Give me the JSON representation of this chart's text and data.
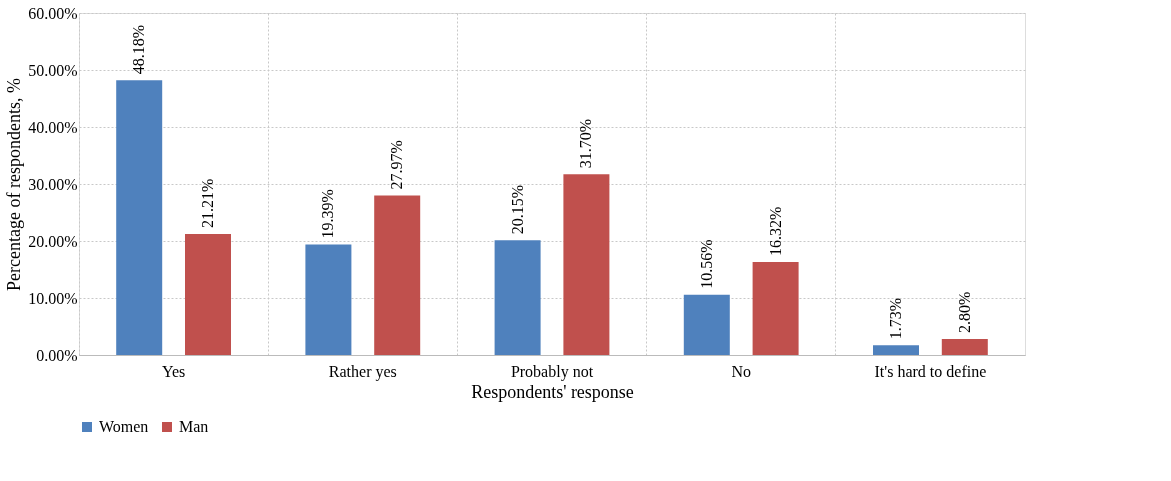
{
  "chart_data": {
    "type": "bar",
    "xlabel": "Respondents' response",
    "ylabel": "Percentage of respondents, %",
    "categories": [
      "Yes",
      "Rather yes",
      "Probably not",
      "No",
      "It's hard to define"
    ],
    "series": [
      {
        "name": "Women",
        "color": "#4f81bd",
        "values": [
          48.18,
          19.39,
          20.15,
          10.56,
          1.73
        ],
        "value_labels": [
          "48.18%",
          "19.39%",
          "20.15%",
          "10.56%",
          "1.73%"
        ]
      },
      {
        "name": "Man",
        "color": "#c0504d",
        "values": [
          21.21,
          27.97,
          31.7,
          16.32,
          2.8
        ],
        "value_labels": [
          "21.21%",
          "27.97%",
          "31.70%",
          "16.32%",
          "2.80%"
        ]
      }
    ],
    "ylim": [
      0,
      60
    ],
    "yticks": [
      {
        "value": 0,
        "label": "0.00%"
      },
      {
        "value": 10,
        "label": "10.00%"
      },
      {
        "value": 20,
        "label": "20.00%"
      },
      {
        "value": 30,
        "label": "30.00%"
      },
      {
        "value": 40,
        "label": "40.00%"
      },
      {
        "value": 50,
        "label": "50.00%"
      },
      {
        "value": 60,
        "label": "60.00%"
      }
    ],
    "grid": true,
    "legend": "bottom"
  }
}
